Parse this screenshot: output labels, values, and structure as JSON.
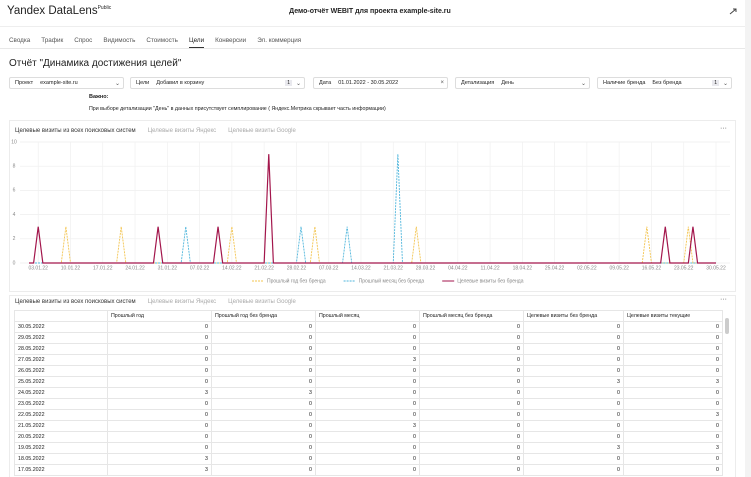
{
  "header": {
    "logo": "Yandex DataLens",
    "badge": "Public",
    "title": "Демо-отчёт WEBIT для проекта example-site.ru"
  },
  "tabs": [
    "Сводка",
    "Трафик",
    "Спрос",
    "Видимость",
    "Стоимость",
    "Цели",
    "Конверсии",
    "Эл. коммерция"
  ],
  "active_tab": 5,
  "page_title": "Отчёт \"Динамика достижения целей\"",
  "filters": [
    {
      "label": "Проект",
      "value": "example-site.ru"
    },
    {
      "label": "Цели",
      "value": "Добавил в корзину",
      "count": 1
    },
    {
      "label": "Дата",
      "value": "01.01.2022 - 30.05.2022"
    },
    {
      "label": "Детализация",
      "value": "День"
    },
    {
      "label": "Наличие бренда",
      "value": "Без бренда",
      "count": 1
    }
  ],
  "note": {
    "title": "Важно:",
    "text": "При выборе детализации \"День\" в данных присутствует семплирование ( Яндекс.Метрика скрывает часть информации)"
  },
  "chart_widget": {
    "tabs": [
      "Целевые визиты из всех поисковых систем",
      "Целевые визиты Яндекс",
      "Целевые визиты Google"
    ]
  },
  "chart_data": {
    "type": "line",
    "categories": [
      null,
      null,
      "03.01.22",
      null,
      null,
      null,
      null,
      null,
      null,
      "10.01.22",
      null,
      null,
      null,
      null,
      null,
      null,
      "17.01.22",
      null,
      null,
      null,
      null,
      null,
      null,
      "24.01.22",
      null,
      null,
      null,
      null,
      null,
      null,
      "31.01.22",
      null,
      null,
      null,
      null,
      null,
      null,
      "07.02.22",
      null,
      null,
      null,
      null,
      null,
      null,
      "14.02.22",
      null,
      null,
      null,
      null,
      null,
      null,
      "21.02.22",
      null,
      null,
      null,
      null,
      null,
      null,
      "28.02.22",
      null,
      null,
      null,
      null,
      null,
      null,
      "07.03.22",
      null,
      null,
      null,
      null,
      null,
      null,
      "14.03.22",
      null,
      null,
      null,
      null,
      null,
      null,
      "21.03.22",
      null,
      null,
      null,
      null,
      null,
      null,
      "28.03.22",
      null,
      null,
      null,
      null,
      null,
      null,
      "04.04.22",
      null,
      null,
      null,
      null,
      null,
      null,
      "11.04.22",
      null,
      null,
      null,
      null,
      null,
      null,
      "18.04.22",
      null,
      null,
      null,
      null,
      null,
      null,
      "25.04.22",
      null,
      null,
      null,
      null,
      null,
      null,
      "02.05.22",
      null,
      null,
      null,
      null,
      null,
      null,
      "09.05.22",
      null,
      null,
      null,
      null,
      null,
      null,
      "16.05.22",
      null,
      null,
      null,
      null,
      null,
      null,
      "23.05.22",
      null,
      null,
      null,
      null,
      null,
      null,
      "30.05.22"
    ],
    "series": [
      {
        "name": "Прошлый год без бренда",
        "color": "#f3c44f",
        "dashed": true,
        "values": [
          0,
          0,
          0,
          0,
          0,
          0,
          0,
          0,
          3,
          0,
          0,
          0,
          0,
          0,
          0,
          0,
          0,
          0,
          0,
          0,
          3,
          0,
          0,
          0,
          0,
          0,
          0,
          0,
          0,
          0,
          0,
          0,
          0,
          0,
          0,
          0,
          0,
          0,
          0,
          0,
          0,
          0,
          0,
          0,
          3,
          0,
          0,
          0,
          0,
          0,
          0,
          0,
          0,
          0,
          0,
          0,
          0,
          0,
          0,
          0,
          0,
          0,
          3,
          0,
          0,
          0,
          0,
          0,
          0,
          0,
          0,
          0,
          0,
          0,
          0,
          0,
          0,
          0,
          0,
          0,
          0,
          0,
          0,
          0,
          3,
          0,
          0,
          0,
          0,
          0,
          0,
          0,
          0,
          0,
          0,
          0,
          0,
          0,
          0,
          0,
          0,
          0,
          0,
          0,
          0,
          0,
          0,
          0,
          0,
          0,
          0,
          0,
          0,
          0,
          0,
          0,
          0,
          0,
          0,
          0,
          0,
          0,
          0,
          0,
          0,
          0,
          0,
          0,
          0,
          0,
          0,
          0,
          0,
          0,
          3,
          0,
          0,
          0,
          0,
          0,
          0,
          0,
          0,
          3,
          0,
          0,
          0,
          0,
          0,
          0
        ]
      },
      {
        "name": "Прошлый месяц без бренда",
        "color": "#4fb6dc",
        "dashed": true,
        "values": [
          0,
          0,
          0,
          0,
          0,
          0,
          0,
          0,
          0,
          0,
          0,
          0,
          0,
          0,
          0,
          0,
          0,
          0,
          0,
          0,
          0,
          0,
          0,
          0,
          0,
          0,
          0,
          0,
          0,
          0,
          0,
          0,
          0,
          0,
          3,
          0,
          0,
          0,
          0,
          0,
          0,
          0,
          0,
          0,
          0,
          0,
          0,
          0,
          0,
          0,
          0,
          0,
          0,
          0,
          0,
          0,
          0,
          0,
          0,
          3,
          0,
          0,
          0,
          0,
          0,
          0,
          0,
          0,
          0,
          3,
          0,
          0,
          0,
          0,
          0,
          0,
          0,
          0,
          0,
          0,
          9,
          0,
          0,
          0,
          0,
          0,
          0,
          0,
          0,
          0,
          0,
          0,
          0,
          0,
          0,
          0,
          0,
          0,
          0,
          0,
          0,
          0,
          0,
          0,
          0,
          0,
          0,
          0,
          0,
          0,
          0,
          0,
          0,
          0,
          0,
          0,
          0,
          0,
          0,
          0,
          0,
          0,
          0,
          0,
          0,
          0,
          0,
          0,
          0,
          0,
          0,
          0,
          0,
          0,
          0,
          0,
          0,
          0,
          0,
          0,
          0,
          0,
          0,
          0,
          0,
          0,
          0,
          0,
          0,
          0
        ]
      },
      {
        "name": "Целевые визиты без бренда",
        "color": "#a3164c",
        "dashed": false,
        "values": [
          0,
          0,
          3,
          0,
          0,
          0,
          0,
          0,
          0,
          0,
          0,
          0,
          0,
          0,
          0,
          0,
          0,
          0,
          0,
          0,
          0,
          0,
          0,
          0,
          0,
          0,
          0,
          0,
          3,
          0,
          0,
          0,
          0,
          0,
          0,
          0,
          0,
          0,
          0,
          0,
          0,
          3,
          0,
          0,
          0,
          0,
          0,
          0,
          0,
          0,
          0,
          0,
          9,
          0,
          0,
          0,
          0,
          0,
          0,
          0,
          0,
          0,
          0,
          0,
          0,
          0,
          0,
          0,
          0,
          0,
          0,
          0,
          0,
          0,
          0,
          0,
          0,
          0,
          0,
          0,
          0,
          0,
          0,
          0,
          0,
          0,
          0,
          0,
          0,
          0,
          0,
          0,
          0,
          0,
          0,
          0,
          0,
          0,
          0,
          0,
          0,
          0,
          0,
          0,
          0,
          0,
          0,
          0,
          0,
          0,
          0,
          0,
          0,
          0,
          0,
          0,
          0,
          0,
          0,
          0,
          0,
          0,
          0,
          0,
          0,
          0,
          0,
          0,
          0,
          0,
          0,
          0,
          0,
          0,
          0,
          0,
          0,
          0,
          3,
          0,
          0,
          0,
          0,
          0,
          3,
          0,
          0,
          0,
          0,
          0
        ]
      }
    ],
    "ylim": [
      0,
      10
    ],
    "yticks": [
      0,
      2,
      4,
      6,
      8,
      10
    ],
    "grid": true,
    "legend": "bottom"
  },
  "table_widget": {
    "tabs": [
      "Целевые визиты из всех поисковых систем",
      "Целевые визиты Яндекс",
      "Целевые визиты Google"
    ],
    "table": {
      "columns": [
        "Прошлый год",
        "Прошлый год без бренда",
        "Прошлый месяц",
        "Прошлый месяц без бренда",
        "Целевые визиты без бренда",
        "Целевые визиты текущие"
      ],
      "rows": [
        [
          "30.05.2022",
          0,
          0,
          0,
          0,
          0,
          0
        ],
        [
          "29.05.2022",
          0,
          0,
          0,
          0,
          0,
          0
        ],
        [
          "28.05.2022",
          0,
          0,
          0,
          0,
          0,
          0
        ],
        [
          "27.05.2022",
          0,
          0,
          3,
          0,
          0,
          0
        ],
        [
          "26.05.2022",
          0,
          0,
          0,
          0,
          0,
          0
        ],
        [
          "25.05.2022",
          0,
          0,
          0,
          0,
          3,
          3
        ],
        [
          "24.05.2022",
          3,
          3,
          0,
          0,
          0,
          0
        ],
        [
          "23.05.2022",
          0,
          0,
          0,
          0,
          0,
          0
        ],
        [
          "22.05.2022",
          0,
          0,
          0,
          0,
          0,
          3
        ],
        [
          "21.05.2022",
          0,
          0,
          3,
          0,
          0,
          0
        ],
        [
          "20.05.2022",
          0,
          0,
          0,
          0,
          0,
          0
        ],
        [
          "19.05.2022",
          0,
          0,
          0,
          0,
          3,
          3
        ],
        [
          "18.05.2022",
          3,
          0,
          0,
          0,
          0,
          0
        ],
        [
          "17.05.2022",
          3,
          0,
          0,
          0,
          0,
          0
        ]
      ]
    }
  }
}
